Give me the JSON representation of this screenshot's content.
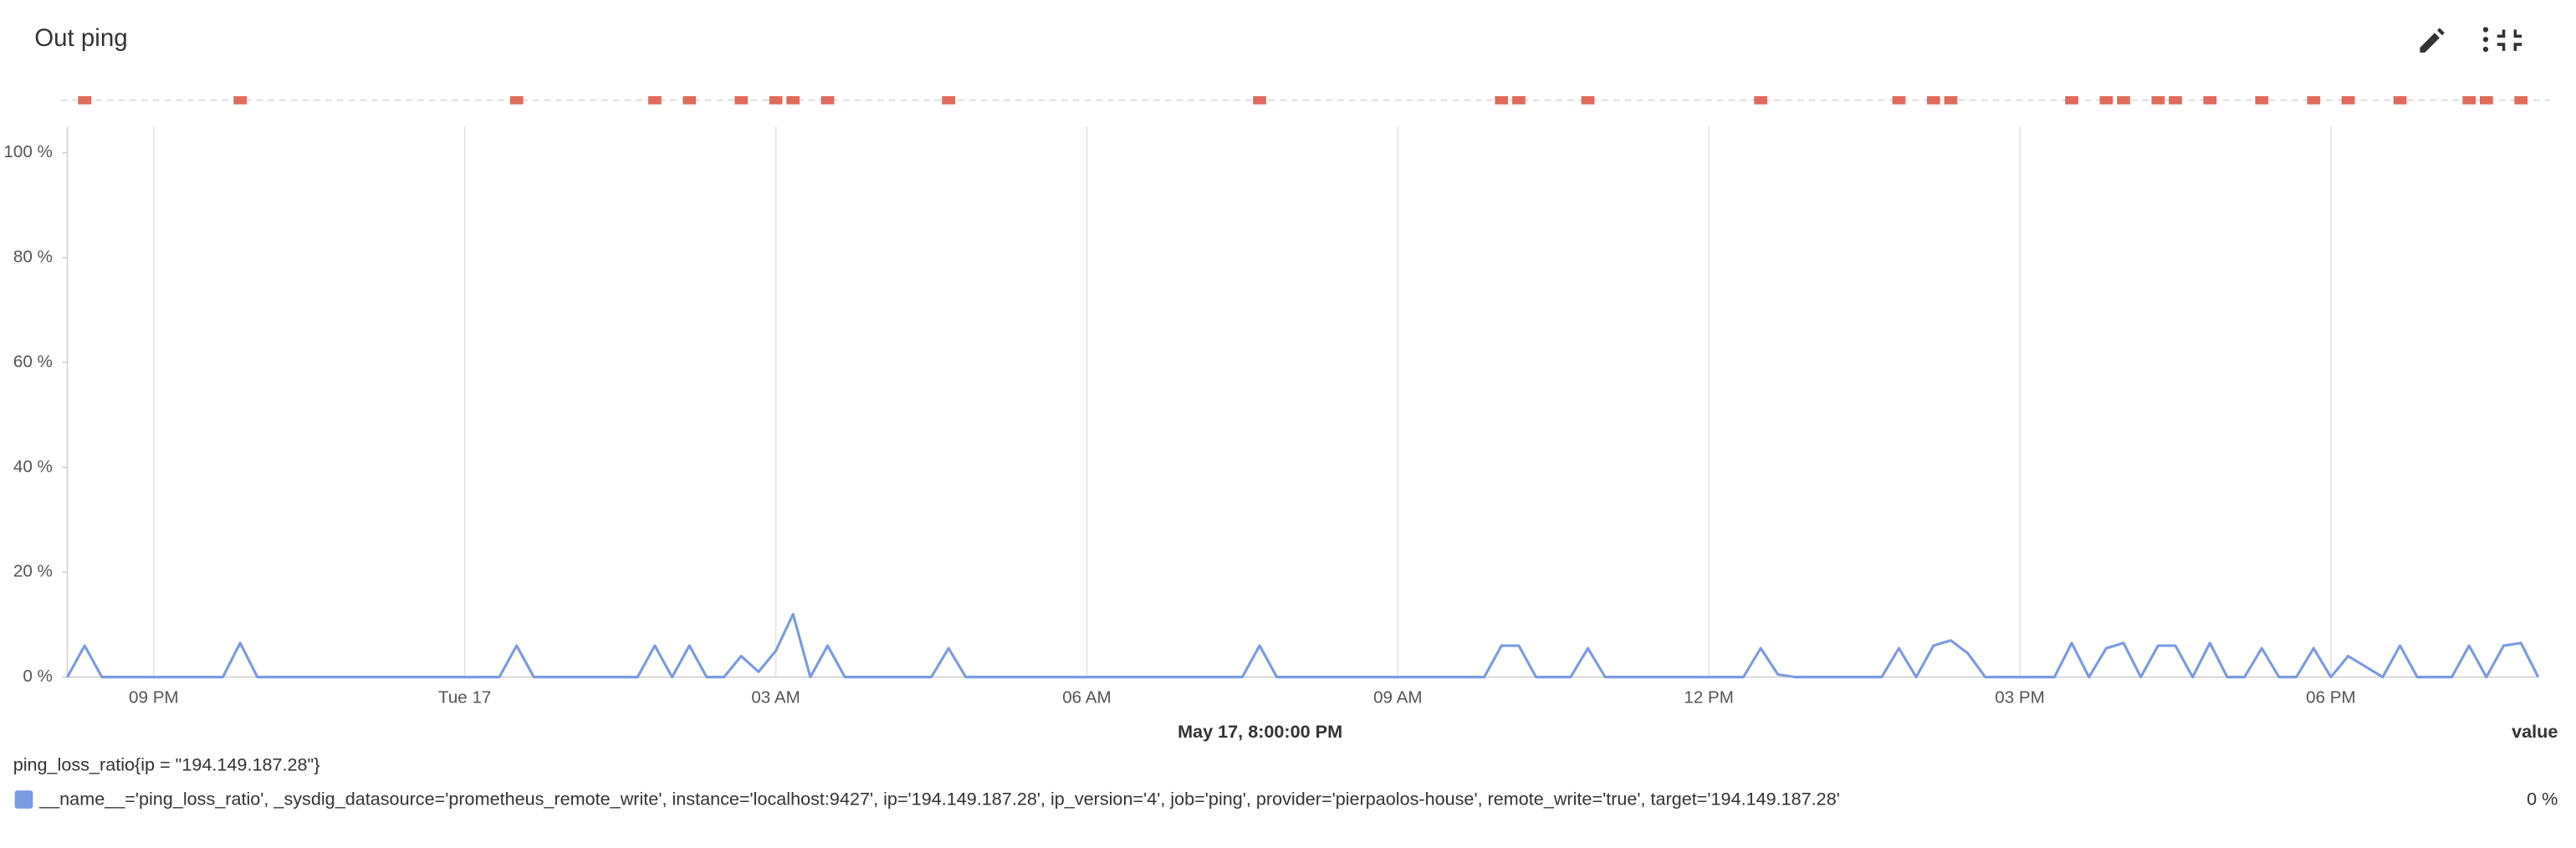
{
  "chart_data": {
    "type": "line",
    "title": "Out ping",
    "crosshair_label": "May 17, 8:00:00 PM",
    "value_column_label": "value",
    "legend_title": "ping_loss_ratio{ip = \"194.149.187.28\"}",
    "x": [
      10,
      20,
      30,
      100,
      110,
      120,
      260,
      270,
      280,
      340,
      350,
      360,
      370,
      380,
      390,
      400,
      410,
      420,
      430,
      440,
      450,
      460,
      510,
      520,
      530,
      690,
      700,
      710,
      830,
      840,
      850,
      860,
      880,
      890,
      900,
      980,
      990,
      1000,
      1010,
      1060,
      1070,
      1080,
      1090,
      1100,
      1110,
      1120,
      1160,
      1170,
      1180,
      1190,
      1200,
      1210,
      1220,
      1230,
      1240,
      1250,
      1260,
      1270,
      1280,
      1290,
      1300,
      1310,
      1320,
      1330,
      1340,
      1350,
      1360,
      1370,
      1390,
      1400,
      1410,
      1420,
      1430,
      1440
    ],
    "xlim": [
      10,
      1440
    ],
    "xticks": [
      {
        "value": 60,
        "label": "09 PM"
      },
      {
        "value": 240,
        "label": "Tue 17"
      },
      {
        "value": 420,
        "label": "03 AM"
      },
      {
        "value": 600,
        "label": "06 AM"
      },
      {
        "value": 780,
        "label": "09 AM"
      },
      {
        "value": 960,
        "label": "12 PM"
      },
      {
        "value": 1140,
        "label": "03 PM"
      },
      {
        "value": 1320,
        "label": "06 PM"
      }
    ],
    "ylim": [
      0,
      105
    ],
    "yticks": [
      {
        "value": 0,
        "label": "0 %"
      },
      {
        "value": 20,
        "label": "20 %"
      },
      {
        "value": 40,
        "label": "40 %"
      },
      {
        "value": 60,
        "label": "60 %"
      },
      {
        "value": 80,
        "label": "80 %"
      },
      {
        "value": 100,
        "label": "100 %"
      }
    ],
    "grid": true,
    "series": [
      {
        "name": "__name__='ping_loss_ratio', _sysdig_datasource='prometheus_remote_write', instance='localhost:9427', ip='194.149.187.28', ip_version='4', job='ping', provider='pierpaolos-house', remote_write='true', target='194.149.187.28'",
        "color": "#7b9be3",
        "values": [
          0,
          6,
          0,
          0,
          6.5,
          0,
          0,
          6,
          0,
          0,
          6,
          0,
          6,
          0,
          0,
          4,
          1,
          5,
          12,
          0,
          6,
          0,
          0,
          5.5,
          0,
          0,
          6,
          0,
          0,
          6,
          6,
          0,
          0,
          5.5,
          0,
          0,
          5.5,
          0.5,
          0,
          0,
          5.5,
          0,
          6,
          7,
          4.5,
          0,
          0,
          6.5,
          0,
          5.5,
          6.5,
          0,
          6,
          6,
          0,
          6.5,
          0,
          0,
          5.5,
          0,
          0,
          5.5,
          0,
          4,
          2,
          0,
          6,
          0,
          0,
          6,
          0,
          6,
          6.5,
          0
        ],
        "legend_value": {
          "value": 0,
          "label": "0 %"
        }
      }
    ],
    "events": {
      "color": "#e06b5c",
      "x": [
        20,
        110,
        270,
        350,
        370,
        400,
        420,
        430,
        450,
        520,
        700,
        840,
        850,
        890,
        990,
        1070,
        1090,
        1100,
        1170,
        1190,
        1200,
        1220,
        1230,
        1250,
        1280,
        1310,
        1330,
        1360,
        1400,
        1410,
        1430
      ]
    }
  }
}
